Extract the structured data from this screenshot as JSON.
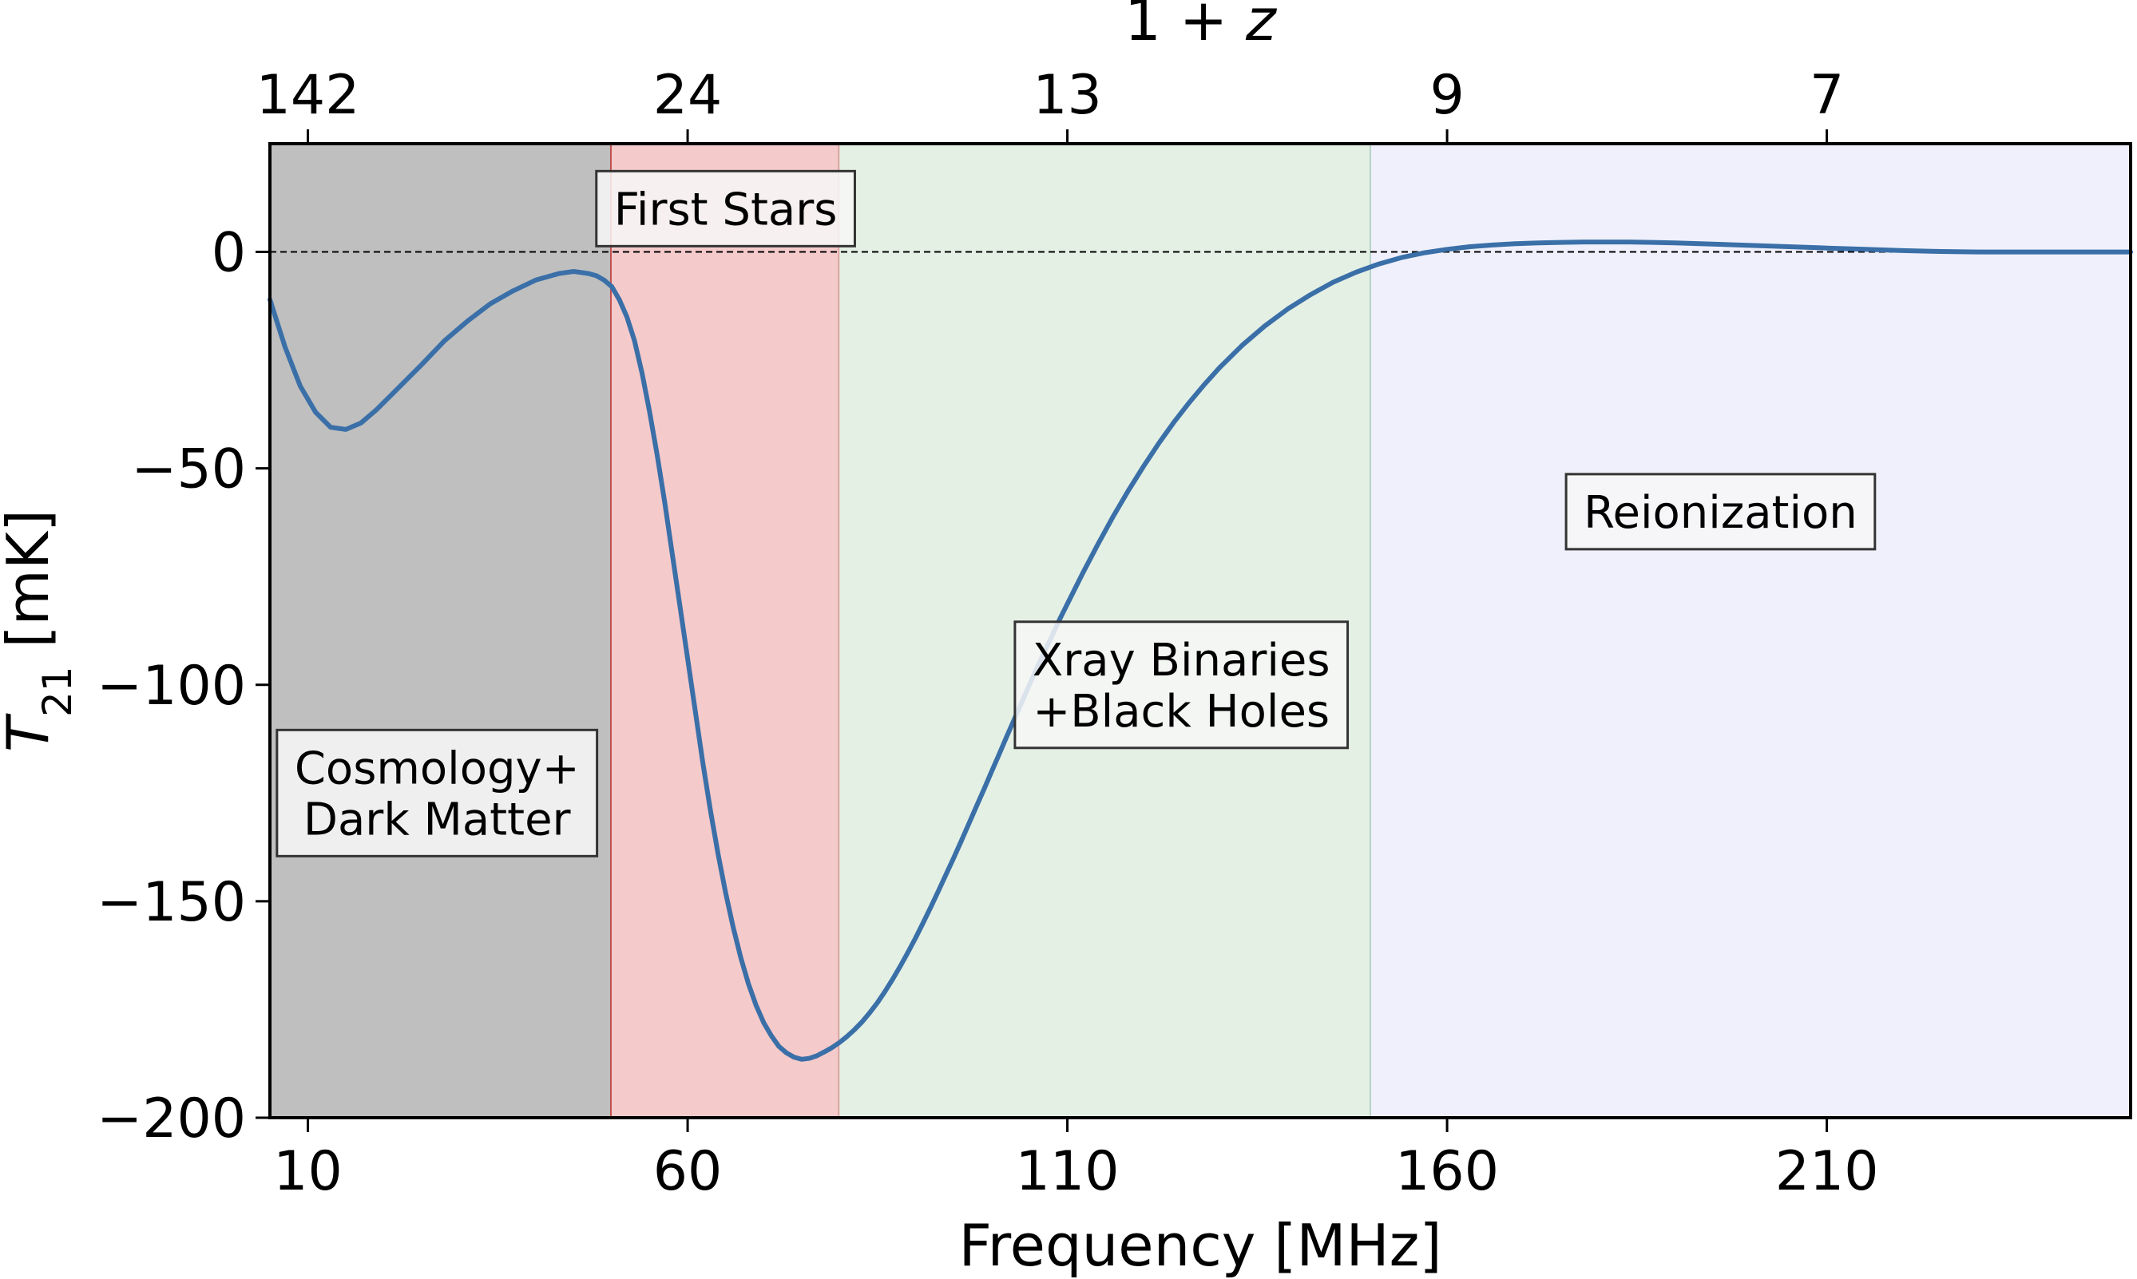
{
  "chart_data": {
    "type": "line",
    "xlabel": "Frequency [MHz]",
    "ylabel": "T",
    "ylabel_sub": "21",
    "ylabel_unit": " [mK]",
    "top_axis_label": "1 + z",
    "xlim": [
      5,
      250
    ],
    "ylim": [
      -200,
      25
    ],
    "x_ticks": [
      10,
      60,
      110,
      160,
      210
    ],
    "y_ticks": [
      0,
      -50,
      -100,
      -150,
      -200
    ],
    "y_tick_labels": [
      "0",
      "−50",
      "−100",
      "−150",
      "−200"
    ],
    "top_ticks": [
      {
        "freq": 10,
        "label": "142"
      },
      {
        "freq": 60,
        "label": "24"
      },
      {
        "freq": 110,
        "label": "13"
      },
      {
        "freq": 160,
        "label": "9"
      },
      {
        "freq": 210,
        "label": "7"
      }
    ],
    "reference_line": {
      "y": 0,
      "style": "dashed"
    },
    "regions": [
      {
        "x0": 5,
        "x1": 50,
        "color": "#bfbfbf",
        "border": "#c0504d",
        "label_lines": [
          "Cosmology+",
          "Dark Matter"
        ],
        "label_x": 27,
        "label_y": -125
      },
      {
        "x0": 50,
        "x1": 80,
        "color": "#f5caca",
        "border": "#d9a5a0",
        "label_lines": [
          "First Stars"
        ],
        "label_x": 65,
        "label_y": 10
      },
      {
        "x0": 80,
        "x1": 150,
        "color": "#e4f0e4",
        "border": "#b7d3c7",
        "label_lines": [
          "Xray Binaries",
          "+Black Holes"
        ],
        "label_x": 125,
        "label_y": -100
      },
      {
        "x0": 150,
        "x1": 250,
        "color": "#eff0fb",
        "border": null,
        "label_lines": [
          "Reionization"
        ],
        "label_x": 196,
        "label_y": -60
      }
    ],
    "series": [
      {
        "color": "#3a6fa8",
        "x": [
          5,
          7,
          9,
          11,
          13,
          15,
          17,
          19,
          21,
          23,
          25,
          28,
          31,
          34,
          37,
          40,
          43,
          45,
          47,
          48,
          49,
          50,
          51,
          52,
          53,
          54,
          55,
          56,
          57,
          58,
          59,
          60,
          61,
          62,
          63,
          64,
          65,
          66,
          67,
          68,
          69,
          70,
          71,
          72,
          73,
          74,
          75,
          76,
          77,
          78,
          79,
          80,
          81,
          82,
          83,
          84,
          85,
          86,
          87,
          88,
          89,
          90,
          91,
          92,
          93,
          94,
          95,
          96,
          97,
          98,
          99,
          100,
          101,
          102,
          103,
          104,
          105,
          106,
          107,
          108,
          109,
          110,
          112,
          114,
          116,
          118,
          120,
          122,
          124,
          126,
          128,
          130,
          133,
          136,
          139,
          142,
          145,
          148,
          151,
          154,
          157,
          160,
          163,
          166,
          169,
          172,
          175,
          178,
          181,
          184,
          187,
          190,
          195,
          200,
          205,
          210,
          215,
          220,
          225,
          230,
          235,
          240,
          245,
          250
        ],
        "y": [
          -11,
          -22,
          -31,
          -37,
          -40.5,
          -41,
          -39.5,
          -36.5,
          -33,
          -29.5,
          -26,
          -20.5,
          -16,
          -12,
          -9,
          -6.5,
          -5,
          -4.5,
          -5,
          -5.5,
          -6.5,
          -8,
          -11,
          -15,
          -20.5,
          -28,
          -37,
          -47,
          -58,
          -70,
          -82,
          -94,
          -106,
          -118,
          -129,
          -139,
          -148,
          -156,
          -163,
          -169,
          -174,
          -178,
          -181,
          -183.5,
          -185,
          -186,
          -186.5,
          -186.3,
          -185.7,
          -184.8,
          -183.8,
          -182.6,
          -181.2,
          -179.6,
          -177.8,
          -175.7,
          -173.4,
          -170.8,
          -168,
          -165,
          -161.8,
          -158.5,
          -155,
          -151.4,
          -147.7,
          -143.9,
          -140.1,
          -136.2,
          -132.2,
          -128.2,
          -124.2,
          -120.1,
          -116.1,
          -112,
          -108,
          -104,
          -100,
          -96.1,
          -92.3,
          -88.6,
          -84.8,
          -81.3,
          -74.3,
          -67.6,
          -61.2,
          -55.2,
          -49.6,
          -44.3,
          -39.4,
          -34.9,
          -30.7,
          -26.8,
          -21.6,
          -17.1,
          -13.2,
          -9.9,
          -7,
          -4.7,
          -2.8,
          -1.3,
          -0.2,
          0.6,
          1.2,
          1.6,
          1.9,
          2.1,
          2.2,
          2.3,
          2.3,
          2.3,
          2.2,
          2.1,
          1.8,
          1.5,
          1.2,
          0.9,
          0.6,
          0.3,
          0.1,
          0,
          0,
          0,
          0,
          0
        ]
      }
    ]
  }
}
